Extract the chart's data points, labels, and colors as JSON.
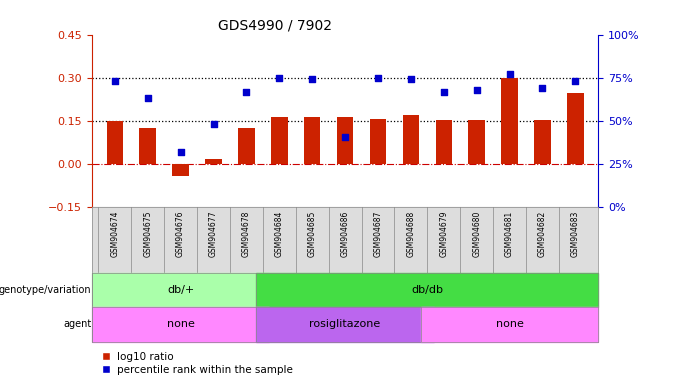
{
  "title": "GDS4990 / 7902",
  "samples": [
    "GSM904674",
    "GSM904675",
    "GSM904676",
    "GSM904677",
    "GSM904678",
    "GSM904684",
    "GSM904685",
    "GSM904686",
    "GSM904687",
    "GSM904688",
    "GSM904679",
    "GSM904680",
    "GSM904681",
    "GSM904682",
    "GSM904683"
  ],
  "log10_ratio": [
    0.15,
    0.125,
    -0.042,
    0.018,
    0.125,
    0.163,
    0.163,
    0.163,
    0.158,
    0.17,
    0.153,
    0.153,
    0.3,
    0.153,
    0.248
  ],
  "percentile_pct": [
    73,
    63,
    32,
    48,
    67,
    75,
    74,
    41,
    75,
    74,
    67,
    68,
    77,
    69,
    73
  ],
  "ylim_left": [
    -0.15,
    0.45
  ],
  "yticks_left": [
    -0.15,
    0.0,
    0.15,
    0.3,
    0.45
  ],
  "yticks_right_pct": [
    0,
    25,
    50,
    75,
    100
  ],
  "hlines": [
    0.15,
    0.3
  ],
  "genotype_groups": [
    {
      "label": "db/+",
      "start": 0,
      "end": 5,
      "color": "#AAFFAA"
    },
    {
      "label": "db/db",
      "start": 5,
      "end": 15,
      "color": "#44DD44"
    }
  ],
  "agent_groups": [
    {
      "label": "none",
      "start": 0,
      "end": 5,
      "color": "#FF88FF"
    },
    {
      "label": "rosiglitazone",
      "start": 5,
      "end": 10,
      "color": "#BB66EE"
    },
    {
      "label": "none",
      "start": 10,
      "end": 15,
      "color": "#FF88FF"
    }
  ],
  "bar_color": "#CC2200",
  "dot_color": "#0000CC",
  "zero_line_color": "#CC0000",
  "hline_color": "#000000",
  "title_color": "#000000",
  "left_axis_color": "#CC2200",
  "right_axis_color": "#0000CC",
  "legend_bar_label": "log10 ratio",
  "legend_dot_label": "percentile rank within the sample",
  "bar_width": 0.5,
  "plot_bg": "#FFFFFF",
  "fig_bg": "#FFFFFF"
}
